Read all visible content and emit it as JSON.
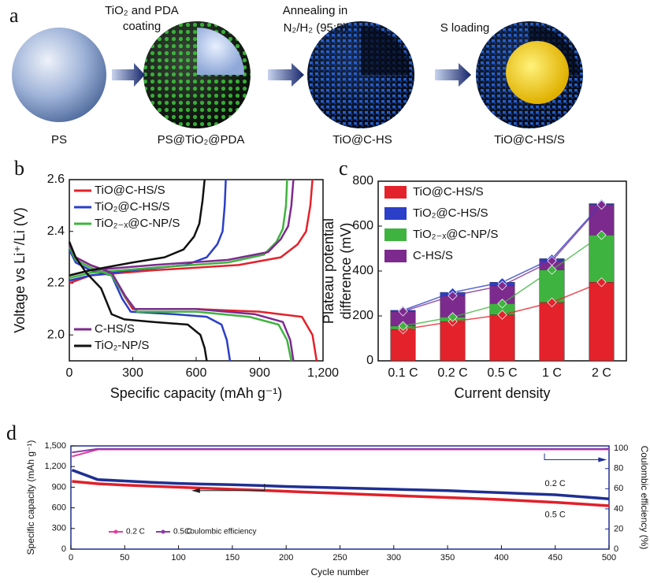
{
  "schematic": {
    "label": "a",
    "steps": [
      [
        "TiO₂ and PDA",
        "coating"
      ],
      [
        "Annealing in",
        "N₂/H₂ (95:5)"
      ],
      [
        "S loading"
      ]
    ],
    "stages": [
      "PS",
      "PS@TiO₂@PDA",
      "TiO@C-HS",
      "TiO@C-HS/S"
    ]
  },
  "chart_data": [
    {
      "panel": "b",
      "type": "line",
      "xlabel": "Specific capacity (mAh g⁻¹)",
      "ylabel": "Voltage vs Li⁺/Li (V)",
      "xlim": [
        0,
        1200
      ],
      "xticks": [
        0,
        300,
        600,
        900,
        {
          "value": 1200,
          "label": "1,200"
        }
      ],
      "ylim": [
        1.9,
        2.6
      ],
      "yticks": [
        {
          "value": 2,
          "label": "2.0"
        },
        2.2,
        2.4,
        2.6
      ],
      "series": [
        {
          "name": "TiO@C-HS/S",
          "color": "#e3222b",
          "x": [
            0,
            30,
            100,
            200,
            260,
            300,
            600,
            900,
            1100,
            1150,
            1170,
            null,
            0,
            100,
            400,
            800,
            1000,
            1080,
            1120,
            1140,
            1150
          ],
          "values": [
            2.35,
            2.3,
            2.27,
            2.24,
            2.15,
            2.1,
            2.1,
            2.09,
            2.07,
            2.0,
            1.9,
            null,
            2.2,
            2.23,
            2.25,
            2.27,
            2.3,
            2.35,
            2.4,
            2.5,
            2.6
          ]
        },
        {
          "name": "TiO₂@C-HS/S",
          "color": "#2b3fc8",
          "x": [
            0,
            30,
            100,
            200,
            250,
            290,
            500,
            650,
            720,
            745,
            760,
            null,
            0,
            100,
            300,
            550,
            650,
            700,
            725,
            735,
            740
          ],
          "values": [
            2.33,
            2.28,
            2.25,
            2.23,
            2.14,
            2.09,
            2.08,
            2.07,
            2.04,
            1.98,
            1.9,
            null,
            2.21,
            2.23,
            2.25,
            2.27,
            2.3,
            2.35,
            2.4,
            2.5,
            2.6
          ]
        },
        {
          "name": "TiO₂₋ₓ@C-NP/S",
          "color": "#3fb33f",
          "x": [
            0,
            30,
            100,
            200,
            270,
            320,
            600,
            850,
            990,
            1030,
            1050,
            null,
            0,
            100,
            400,
            750,
            920,
            980,
            1010,
            1025,
            1030
          ],
          "values": [
            2.34,
            2.29,
            2.26,
            2.23,
            2.14,
            2.09,
            2.09,
            2.07,
            2.04,
            1.98,
            1.9,
            null,
            2.22,
            2.24,
            2.26,
            2.28,
            2.31,
            2.36,
            2.41,
            2.5,
            2.6
          ]
        },
        {
          "name": "C-HS/S",
          "color": "#7d2a8e",
          "x": [
            0,
            30,
            100,
            200,
            265,
            310,
            600,
            880,
            1010,
            1045,
            1060,
            null,
            0,
            100,
            400,
            750,
            940,
            1000,
            1035,
            1050,
            1060
          ],
          "values": [
            2.35,
            2.3,
            2.27,
            2.24,
            2.15,
            2.1,
            2.1,
            2.08,
            2.05,
            1.98,
            1.9,
            null,
            2.23,
            2.25,
            2.27,
            2.29,
            2.32,
            2.37,
            2.42,
            2.5,
            2.6
          ]
        },
        {
          "name": "TiO₂-NP/S",
          "color": "#111111",
          "x": [
            0,
            30,
            80,
            150,
            200,
            260,
            400,
            560,
            620,
            640,
            650,
            null,
            0,
            100,
            300,
            450,
            540,
            590,
            615,
            630,
            640
          ],
          "values": [
            2.36,
            2.3,
            2.24,
            2.18,
            2.08,
            2.06,
            2.05,
            2.04,
            2.0,
            1.95,
            1.9,
            null,
            2.23,
            2.25,
            2.28,
            2.3,
            2.33,
            2.38,
            2.43,
            2.52,
            2.6
          ]
        }
      ]
    },
    {
      "panel": "c",
      "type": "bar",
      "xlabel": "Current density",
      "ylabel": [
        "Plateau potential",
        "difference (mV)"
      ],
      "categories": [
        "0.1 C",
        "0.2 C",
        "0.5 C",
        "1 C",
        "2 C"
      ],
      "ylim": [
        0,
        800
      ],
      "yticks": [
        0,
        200,
        400,
        600,
        800
      ],
      "series": [
        {
          "name": "TiO@C-HS/S",
          "color": "#e3222b",
          "values": [
            140,
            175,
            205,
            260,
            350
          ]
        },
        {
          "name": "TiO₂@C-HS/S",
          "color": "#2b3fc8",
          "values": [
            225,
            305,
            350,
            455,
            700
          ]
        },
        {
          "name": "TiO₂₋ₓ@C-NP/S",
          "color": "#3fb33f",
          "values": [
            155,
            195,
            255,
            405,
            560
          ]
        },
        {
          "name": "C-HS/S",
          "color": "#7d2a8e",
          "values": [
            220,
            290,
            335,
            445,
            695
          ]
        }
      ]
    },
    {
      "panel": "d",
      "type": "line",
      "xlabel": "Cycle number",
      "ylabel": "Specific capacity (mAh g⁻¹)",
      "y2label": "Coulombic efficiency (%)",
      "legend_suffix": "Coulombic efficiency",
      "x": [
        1,
        25,
        50,
        75,
        100,
        125,
        150,
        175,
        200,
        225,
        250,
        275,
        300,
        325,
        350,
        375,
        400,
        425,
        450,
        475,
        500
      ],
      "xlim": [
        0,
        500
      ],
      "xticks": [
        0,
        50,
        100,
        150,
        200,
        250,
        300,
        350,
        400,
        450,
        500
      ],
      "ylim": [
        0,
        1500
      ],
      "yticks": [
        0,
        300,
        600,
        900,
        {
          "value": 1200,
          "label": "1,200"
        },
        {
          "value": 1500,
          "label": "1,500"
        }
      ],
      "y2lim": [
        0,
        102.5
      ],
      "y2ticks": [
        0,
        20,
        40,
        60,
        80,
        100
      ],
      "series": [
        {
          "name": "0.2 C",
          "color": "#1f2f92",
          "values": [
            1150,
            1010,
            990,
            970,
            955,
            945,
            935,
            925,
            910,
            900,
            890,
            880,
            870,
            860,
            850,
            835,
            820,
            805,
            790,
            760,
            730
          ]
        },
        {
          "name": "0.5 C",
          "color": "#e0202a",
          "values": [
            985,
            950,
            930,
            915,
            900,
            885,
            870,
            855,
            840,
            825,
            810,
            795,
            780,
            765,
            750,
            735,
            720,
            700,
            680,
            655,
            630
          ]
        },
        {
          "name": "0.2 C",
          "color": "#e040a0",
          "axis": "y2",
          "values": [
            92,
            99,
            99,
            99,
            99,
            99,
            99,
            99,
            99,
            99,
            99,
            99,
            99,
            99,
            99,
            99,
            99,
            99,
            99,
            99,
            99
          ]
        },
        {
          "name": "0.5 C",
          "color": "#8a3ca8",
          "axis": "y2",
          "values": [
            96,
            99.5,
            99.5,
            99.5,
            99.5,
            99.5,
            99.5,
            99.5,
            99.5,
            99.5,
            99.5,
            99.5,
            99.5,
            99.5,
            99.5,
            99.5,
            99.5,
            99.5,
            99.5,
            99.5,
            99.5
          ]
        }
      ]
    }
  ]
}
